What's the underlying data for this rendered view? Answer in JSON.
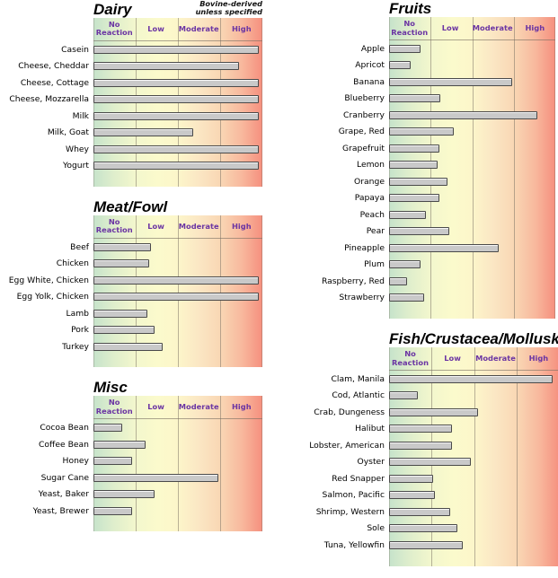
{
  "colors": {
    "header_text": "#6B35A3",
    "bar_fill": "#C9C9C9",
    "bar_border": "#4A4A4A",
    "gradient_green": "#C6E3CB",
    "gradient_yellow": "#FBFACC",
    "gradient_red": "#F58F7E",
    "gridline": "#766C60"
  },
  "reaction_levels": [
    "No Reaction",
    "Low",
    "Moderate",
    "High"
  ],
  "chart_data": [
    {
      "type": "bar",
      "orientation": "horizontal",
      "title": "Dairy",
      "panel_column": "left",
      "note": [
        "Bovine-derived",
        "unless specified"
      ],
      "x_axis_labels": [
        "No Reaction",
        "Low",
        "Moderate",
        "High"
      ],
      "xlim": [
        0,
        100
      ],
      "band_boundaries_pct": [
        0,
        25,
        50,
        75,
        100
      ],
      "categories": [
        "Casein",
        "Cheese, Cheddar",
        "Cheese, Cottage",
        "Cheese, Mozzarella",
        "Milk",
        "Milk, Goat",
        "Whey",
        "Yogurt"
      ],
      "values": [
        98,
        86,
        98,
        98,
        98,
        59,
        98,
        98
      ]
    },
    {
      "type": "bar",
      "orientation": "horizontal",
      "title": "Meat/Fowl",
      "panel_column": "left",
      "x_axis_labels": [
        "No Reaction",
        "Low",
        "Moderate",
        "High"
      ],
      "xlim": [
        0,
        100
      ],
      "band_boundaries_pct": [
        0,
        25,
        50,
        75,
        100
      ],
      "categories": [
        "Beef",
        "Chicken",
        "Egg White, Chicken",
        "Egg Yolk, Chicken",
        "Lamb",
        "Pork",
        "Turkey"
      ],
      "values": [
        34,
        33,
        98,
        98,
        32,
        36,
        41
      ]
    },
    {
      "type": "bar",
      "orientation": "horizontal",
      "title": "Misc",
      "panel_column": "left",
      "x_axis_labels": [
        "No Reaction",
        "Low",
        "Moderate",
        "High"
      ],
      "xlim": [
        0,
        100
      ],
      "band_boundaries_pct": [
        0,
        25,
        50,
        75,
        100
      ],
      "categories": [
        "Cocoa Bean",
        "Coffee Bean",
        "Honey",
        "Sugar Cane",
        "Yeast, Baker",
        "Yeast, Brewer"
      ],
      "values": [
        17,
        31,
        23,
        74,
        36,
        23
      ]
    },
    {
      "type": "bar",
      "orientation": "horizontal",
      "title": "Fruits",
      "panel_column": "right",
      "x_axis_labels": [
        "No Reaction",
        "Low",
        "Moderate",
        "High"
      ],
      "xlim": [
        0,
        100
      ],
      "band_boundaries_pct": [
        0,
        25,
        50,
        75,
        100
      ],
      "categories": [
        "Apple",
        "Apricot",
        "Banana",
        "Blueberry",
        "Cranberry",
        "Grape, Red",
        "Grapefruit",
        "Lemon",
        "Orange",
        "Papaya",
        "Peach",
        "Pear",
        "Pineapple",
        "Plum",
        "Raspberry, Red",
        "Strawberry"
      ],
      "values": [
        19,
        13,
        74,
        31,
        89,
        39,
        30,
        29,
        35,
        30,
        22,
        36,
        66,
        19,
        11,
        21
      ]
    },
    {
      "type": "bar",
      "orientation": "horizontal",
      "title": "Fish/Crustacea/Mollusk",
      "panel_column": "right",
      "x_axis_labels": [
        "No Reaction",
        "Low",
        "Moderate",
        "High"
      ],
      "xlim": [
        0,
        100
      ],
      "band_boundaries_pct": [
        0,
        25,
        50,
        75,
        100
      ],
      "categories": [
        "Clam, Manila",
        "Cod, Atlantic",
        "Crab, Dungeness",
        "Halibut",
        "Lobster, American",
        "Oyster",
        "Red Snapper",
        "Salmon, Pacific",
        "Shrimp, Western",
        "Sole",
        "Tuna, Yellowfin"
      ],
      "values": [
        96,
        17,
        52,
        37,
        37,
        48,
        26,
        27,
        36,
        40,
        43
      ]
    }
  ]
}
